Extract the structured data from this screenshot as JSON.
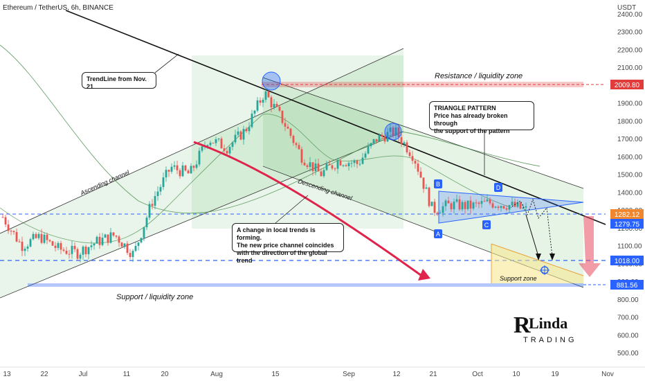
{
  "header": {
    "symbol_title": "Ethereum / TetherUS, 6h, BINANCE",
    "currency": "USDT"
  },
  "chart_data": {
    "type": "candlestick",
    "title": "Ethereum / TetherUS, 6h, BINANCE",
    "y_unit": "USDT",
    "ylim": [
      430,
      2450
    ],
    "y_ticks": [
      "2400.00",
      "2300.00",
      "2200.00",
      "2100.00",
      "1900.00",
      "1800.00",
      "1700.00",
      "1600.00",
      "1500.00",
      "1400.00",
      "1300.00",
      "1200.00",
      "1100.00",
      "1000.00",
      "900.00",
      "800.00",
      "700.00",
      "600.00",
      "500.00"
    ],
    "x_ticks": [
      "13",
      "22",
      "Jul",
      "11",
      "20",
      "Aug",
      "15",
      "Sep",
      "12",
      "21",
      "Oct",
      "10",
      "19",
      "Nov"
    ],
    "price_series": {
      "x": [
        "Jun 13",
        "Jun 18",
        "Jun 22",
        "Jun 27",
        "Jul 1",
        "Jul 6",
        "Jul 11",
        "Jul 15",
        "Jul 20",
        "Jul 24",
        "Jul 28",
        "Aug 2",
        "Aug 6",
        "Aug 10",
        "Aug 14",
        "Aug 18",
        "Aug 22",
        "Aug 26",
        "Aug 31",
        "Sep 4",
        "Sep 8",
        "Sep 12",
        "Sep 16",
        "Sep 21",
        "Sep 25",
        "Sep 30",
        "Oct 4",
        "Oct 8",
        "Oct 12"
      ],
      "close": [
        1260,
        1100,
        1150,
        1080,
        1060,
        1120,
        1160,
        1050,
        1350,
        1540,
        1500,
        1700,
        1650,
        1750,
        1960,
        1800,
        1600,
        1500,
        1580,
        1560,
        1700,
        1740,
        1600,
        1300,
        1330,
        1320,
        1340,
        1330,
        1300
      ]
    },
    "levels": [
      {
        "value": 2009.8,
        "label": "Resistance / liquidity zone",
        "color": "#e23b3b"
      },
      {
        "value": 1282.12,
        "color": "#f0862d"
      },
      {
        "value": 1279.75,
        "color": "#2962ff"
      },
      {
        "value": 1018.0,
        "color": "#2962ff"
      },
      {
        "value": 881.56,
        "label": "Support / liquidity zone",
        "color": "#2962ff"
      }
    ]
  },
  "annotations": {
    "trendline_label": "TrendLine from Nov. 21",
    "resistance_label": "Resistance / liquidity zone",
    "support_label": "Support / liquidity zone",
    "support_zone_label": "Support zone",
    "ascending_label": "Ascending channel",
    "descending_label": "Descending channel",
    "triangle_title": "TRIANGLE PATTERN",
    "triangle_line1": "Price has already broken through",
    "triangle_line2": "the support of the pattern",
    "trend_change_line1": "A change in local trends is forming.",
    "trend_change_line2": "The new price channel coincides",
    "trend_change_line3": "with the direction of the global trend",
    "point_a1": "A",
    "point_a2": "A",
    "point_b": "B",
    "point_c": "C",
    "point_d": "D"
  },
  "price_tags": {
    "t1": "2009.80",
    "t2": "1282.12",
    "t3": "1279.75",
    "t4": "1018.00",
    "t5": "881.56"
  },
  "logo": {
    "line1": "Linda",
    "line2": "TRADING"
  },
  "colors": {
    "channel_fill": "#4caf50",
    "resistance": "#e23b3b",
    "support": "#2962ff",
    "triangle": "#2962ff",
    "arrow_red": "#e0234a",
    "support_zone": "#f5e58a"
  }
}
